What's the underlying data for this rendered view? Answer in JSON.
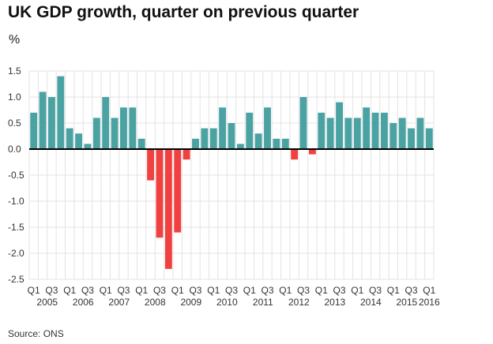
{
  "title": "UK GDP growth, quarter on previous quarter",
  "unit": "%",
  "source": "Source: ONS",
  "colors": {
    "positive": "#4aa3a2",
    "negative": "#f04040",
    "grid": "#e3e3e3",
    "axis": "#000000"
  },
  "chart_data": {
    "type": "bar",
    "ylim": [
      -2.5,
      1.5
    ],
    "yticks": [
      "1.5",
      "1.0",
      "0.5",
      "0.0",
      "-0.5",
      "-1.0",
      "-1.5",
      "-2.0",
      "-2.5"
    ],
    "grid": true,
    "quarter_labels": [
      "Q1",
      "Q3",
      "Q1",
      "Q3",
      "Q1",
      "Q3",
      "Q1",
      "Q3",
      "Q1",
      "Q3",
      "Q1",
      "Q3",
      "Q1",
      "Q3",
      "Q1",
      "Q3",
      "Q1",
      "Q3",
      "Q1",
      "Q3",
      "Q1",
      "Q3",
      "Q1"
    ],
    "year_labels": [
      "2005",
      "2006",
      "2007",
      "2008",
      "2009",
      "2010",
      "2011",
      "2012",
      "2013",
      "2014",
      "2015",
      "2016"
    ],
    "categories": [
      "2005 Q1",
      "2005 Q2",
      "2005 Q3",
      "2005 Q4",
      "2006 Q1",
      "2006 Q2",
      "2006 Q3",
      "2006 Q4",
      "2007 Q1",
      "2007 Q2",
      "2007 Q3",
      "2007 Q4",
      "2008 Q1",
      "2008 Q2",
      "2008 Q3",
      "2008 Q4",
      "2009 Q1",
      "2009 Q2",
      "2009 Q3",
      "2009 Q4",
      "2010 Q1",
      "2010 Q2",
      "2010 Q3",
      "2010 Q4",
      "2011 Q1",
      "2011 Q2",
      "2011 Q3",
      "2011 Q4",
      "2012 Q1",
      "2012 Q2",
      "2012 Q3",
      "2012 Q4",
      "2013 Q1",
      "2013 Q2",
      "2013 Q3",
      "2013 Q4",
      "2014 Q1",
      "2014 Q2",
      "2014 Q3",
      "2014 Q4",
      "2015 Q1",
      "2015 Q2",
      "2015 Q3",
      "2015 Q4",
      "2016 Q1"
    ],
    "values": [
      0.7,
      1.1,
      1.0,
      1.4,
      0.4,
      0.3,
      0.1,
      0.6,
      1.0,
      0.6,
      0.8,
      0.8,
      0.2,
      -0.6,
      -1.7,
      -2.3,
      -1.6,
      -0.2,
      0.2,
      0.4,
      0.4,
      0.8,
      0.5,
      0.1,
      0.7,
      0.3,
      0.8,
      0.2,
      0.2,
      -0.2,
      1.0,
      -0.1,
      0.7,
      0.6,
      0.9,
      0.6,
      0.6,
      0.8,
      0.7,
      0.7,
      0.5,
      0.6,
      0.4,
      0.6,
      0.4
    ]
  }
}
